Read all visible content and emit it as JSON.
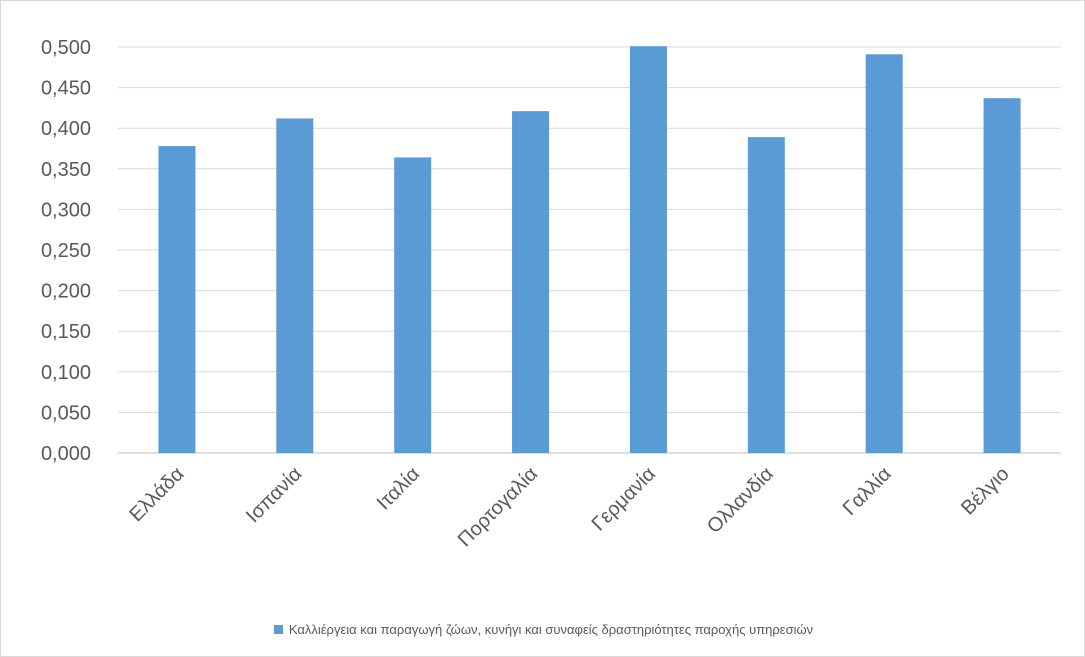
{
  "chart_data": {
    "type": "bar",
    "categories": [
      "Ελλάδα",
      "Ισπανία",
      "Ιταλία",
      "Πορτογαλία",
      "Γερμανία",
      "Ολλανδία",
      "Γαλλία",
      "Βέλγιο"
    ],
    "series": [
      {
        "name": "Καλλιέργεια και παραγωγή ζώων, κυνήγι και συναφείς δραστηριότητες παροχής υπηρεσιών",
        "values": [
          0.378,
          0.412,
          0.364,
          0.421,
          0.501,
          0.389,
          0.491,
          0.437
        ],
        "color": "#5b9bd5"
      }
    ],
    "yticks": [
      "0,000",
      "0,050",
      "0,100",
      "0,150",
      "0,200",
      "0,250",
      "0,300",
      "0,350",
      "0,400",
      "0,450",
      "0,500"
    ],
    "ylim": [
      0,
      0.5
    ],
    "grid": true,
    "legend_position": "bottom",
    "title": "",
    "xlabel": "",
    "ylabel": ""
  }
}
